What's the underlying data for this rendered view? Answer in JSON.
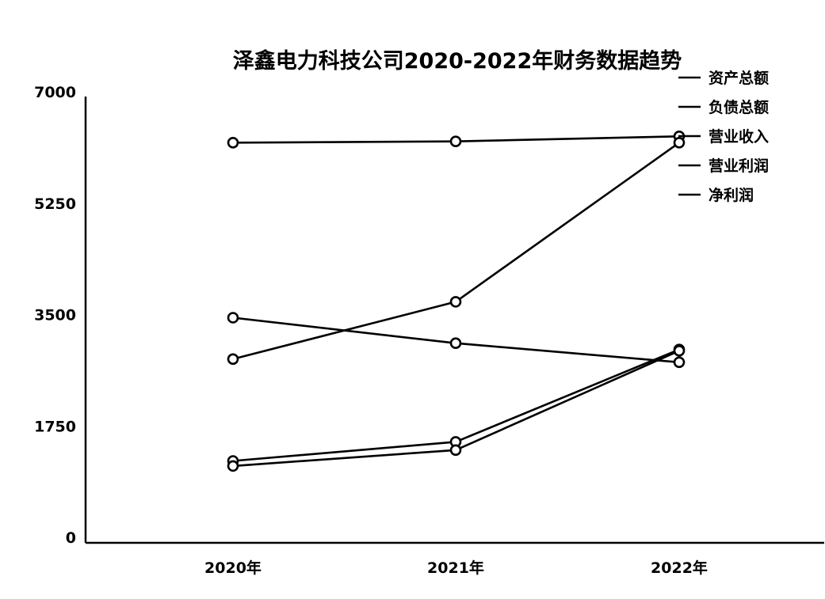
{
  "chart_data": {
    "type": "line",
    "title": "泽鑫电力科技公司2020-2022年财务数据趋势",
    "xlabel": "",
    "ylabel": "",
    "categories": [
      "2020年",
      "2021年",
      "2022年"
    ],
    "ylim": [
      0,
      7000
    ],
    "yticks": [
      "0",
      "1750",
      "3500",
      "5250",
      "7000"
    ],
    "grid": false,
    "legend_position": "top-right",
    "series": [
      {
        "name": "资产总额",
        "values": [
          6200,
          6220,
          6300
        ]
      },
      {
        "name": "负债总额",
        "values": [
          2800,
          3700,
          6200
        ]
      },
      {
        "name": "营业收入",
        "values": [
          3450,
          3050,
          2750
        ]
      },
      {
        "name": "营业利润",
        "values": [
          1200,
          1500,
          2950
        ]
      },
      {
        "name": "净利润",
        "values": [
          1120,
          1370,
          2930
        ]
      }
    ]
  }
}
